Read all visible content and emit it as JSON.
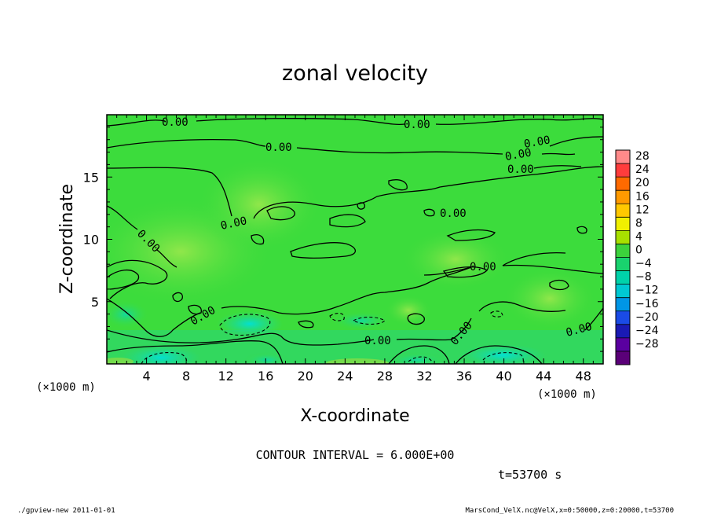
{
  "chart_data": {
    "type": "heatmap",
    "title": "zonal velocity",
    "xlabel": "X-coordinate",
    "ylabel": "Z-coordinate",
    "x_unit_label": "(×1000 m)",
    "y_unit_label": "(×1000 m)",
    "xlim": [
      0,
      50
    ],
    "ylim": [
      0,
      20
    ],
    "x_ticks": [
      4,
      8,
      12,
      16,
      20,
      24,
      28,
      32,
      36,
      40,
      44,
      48
    ],
    "y_ticks": [
      5,
      10,
      15
    ],
    "colorbar": {
      "labels": [
        "28",
        "24",
        "20",
        "16",
        "12",
        "8",
        "4",
        "0",
        "−4",
        "−8",
        "−12",
        "−16",
        "−20",
        "−24",
        "−28"
      ],
      "colors": [
        "#ff8a8a",
        "#ff3c3c",
        "#ff6a00",
        "#ff9a00",
        "#ffc800",
        "#f0f000",
        "#a8e000",
        "#3cd23c",
        "#19d26e",
        "#00d2aa",
        "#00c8d2",
        "#0096e6",
        "#1a4be6",
        "#1a1ab4",
        "#5a00a0",
        "#5a0078"
      ]
    },
    "contour_label": "0.00",
    "contour_interval_text": "CONTOUR INTERVAL = 6.000E+00",
    "time_text": "t=53700 s",
    "footer_left": "./gpview-new  2011-01-01",
    "footer_right": "MarsCond_VelX.nc@VelX,x=0:50000,z=0:20000,t=53700"
  },
  "colors": {
    "field_base": "#3cdc3c",
    "field_light": "#8ee84a",
    "field_negative": "#14d2a0",
    "field_strong_negative": "#00d8d2",
    "contour": "#000000"
  }
}
